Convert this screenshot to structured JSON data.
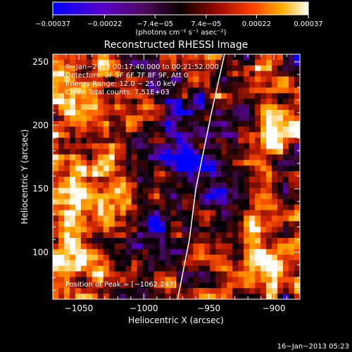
{
  "chart_data": {
    "type": "heatmap",
    "title": "Reconstructed RHESSI Image",
    "xlabel": "Heliocentric X (arcsec)",
    "ylabel": "Heliocentric Y (arcsec)",
    "xlim": [
      -1070,
      -880
    ],
    "ylim": [
      63,
      256
    ],
    "x_ticks": [
      -1050,
      -1000,
      -950,
      -900
    ],
    "x_tick_labels": [
      "−1050",
      "−1000",
      "−950",
      "−900"
    ],
    "y_ticks": [
      100,
      150,
      200,
      250
    ],
    "y_tick_labels": [
      "100",
      "150",
      "200",
      "250"
    ],
    "colorbar": {
      "min": -0.00037,
      "max": 0.00037,
      "ticks": [
        -0.00037,
        -0.00022,
        -7.4e-05,
        7.4e-05,
        0.00022,
        0.00037
      ],
      "tick_labels": [
        "−0.00037",
        "−0.00022",
        "−7.4e−05",
        "7.4e−05",
        "0.00022",
        "0.00037"
      ],
      "unit_label": "(photons cm⁻² s⁻¹ asec⁻²)"
    },
    "info_lines": [
      "9−Jan−2013 00:17:40.000 to 00:21:52.000",
      "Detectors: 3F 5F 6F 7F 8F 9F, Att 0",
      "Energy Range: 12.0 − 25.0 keV",
      "Clean    Total counts: 7.51E+03"
    ],
    "peak_label": "Position of Peak = [−1062,247]",
    "peak_position": [
      -1062,
      247
    ],
    "limb_line": [
      [
        -974,
        63
      ],
      [
        -965,
        110
      ],
      [
        -960,
        150
      ],
      [
        -948,
        210
      ],
      [
        -938,
        256
      ]
    ],
    "grid": false,
    "colormap": [
      "#0000ff",
      "#5a00b5",
      "#3a0a3a",
      "#000000",
      "#5a0a0a",
      "#c82000",
      "#ff5a00",
      "#ffb000",
      "#ffffff"
    ]
  },
  "footer": {
    "timestamp": "16−Jan−2013 05:23"
  }
}
